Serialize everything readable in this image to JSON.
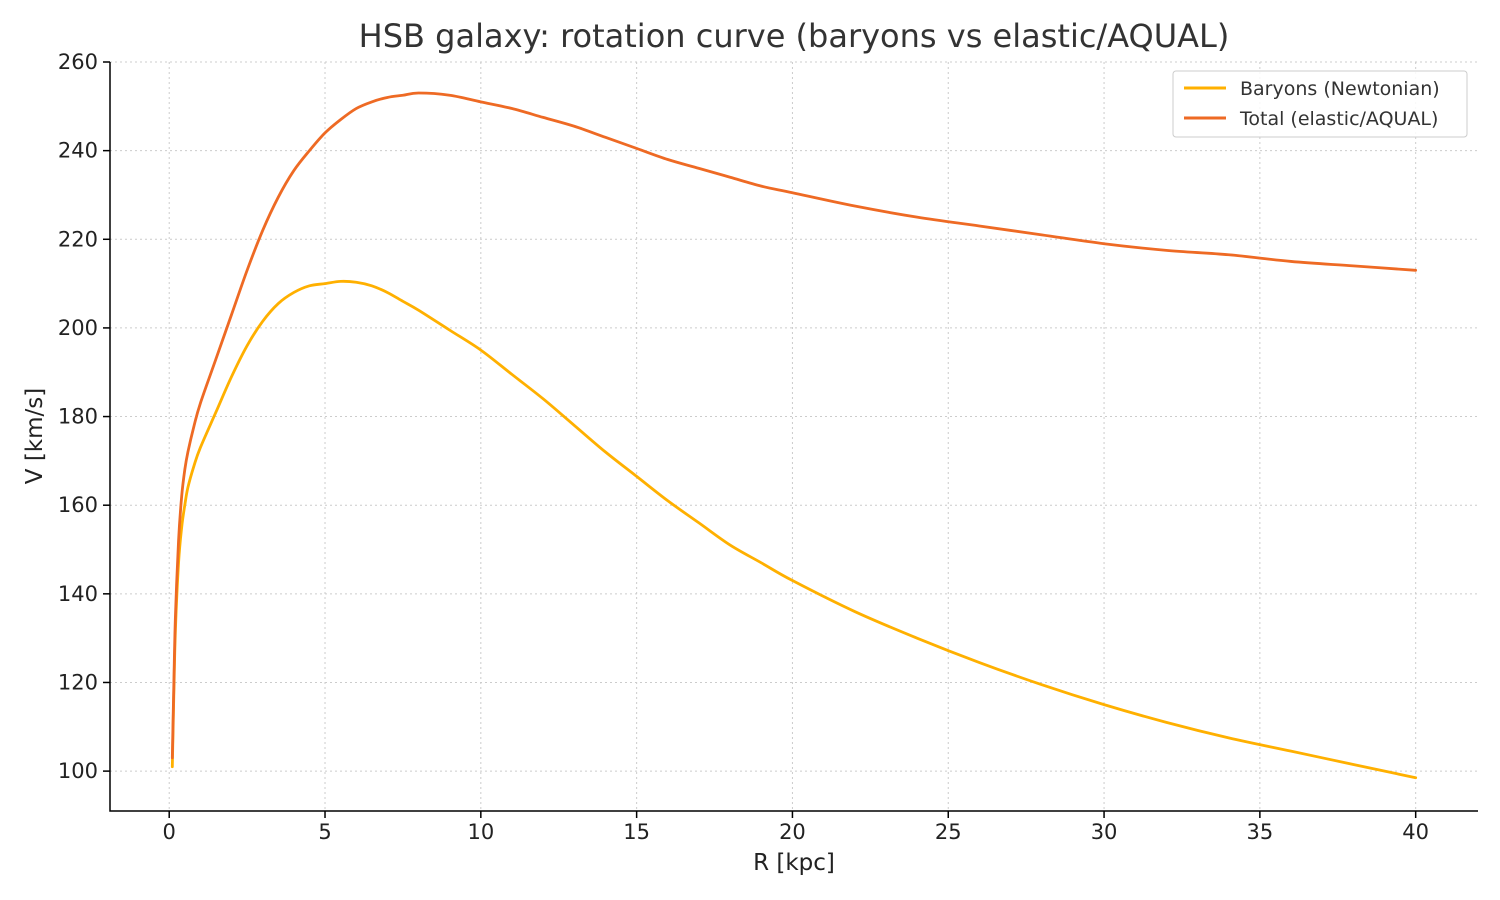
{
  "chart_data": {
    "type": "line",
    "title": "HSB galaxy: rotation curve (baryons vs elastic/AQUAL)",
    "xlabel": "R [kpc]",
    "ylabel": "V [km/s]",
    "xlim": [
      -1.9,
      42
    ],
    "ylim": [
      91,
      260
    ],
    "xticks": [
      0,
      5,
      10,
      15,
      20,
      25,
      30,
      35,
      40
    ],
    "yticks": [
      100,
      120,
      140,
      160,
      180,
      200,
      220,
      240,
      260
    ],
    "grid": true,
    "legend_position": "top-right",
    "series": [
      {
        "name": "Baryons (Newtonian)",
        "color": "#FFB000",
        "x": [
          0.1,
          0.15,
          0.2,
          0.3,
          0.4,
          0.5,
          0.6,
          0.8,
          1,
          1.5,
          2,
          2.5,
          3,
          3.5,
          4,
          4.5,
          5,
          5.5,
          6,
          6.5,
          7,
          7.5,
          8,
          9,
          10,
          11,
          12,
          13,
          14,
          15,
          16,
          17,
          18,
          19,
          20,
          22,
          24,
          26,
          28,
          30,
          32,
          34,
          36,
          38,
          40
        ],
        "y": [
          101,
          118,
          132,
          147,
          155,
          160,
          164,
          169,
          173,
          181,
          189,
          196,
          201.5,
          205.5,
          208,
          209.5,
          210,
          210.5,
          210.3,
          209.5,
          208,
          206,
          204,
          199.5,
          195,
          189.5,
          184,
          178,
          172,
          166.5,
          161,
          156,
          151,
          147,
          143,
          136,
          130,
          124.5,
          119.5,
          115,
          111,
          107.5,
          104.5,
          101.5,
          98.5
        ]
      },
      {
        "name": "Total (elastic/AQUAL)",
        "color": "#EE6A24",
        "x": [
          0.1,
          0.15,
          0.2,
          0.3,
          0.4,
          0.5,
          0.6,
          0.8,
          1,
          1.5,
          2,
          2.5,
          3,
          3.5,
          4,
          4.5,
          5,
          5.5,
          6,
          6.5,
          7,
          7.5,
          8,
          9,
          10,
          11,
          12,
          13,
          14,
          15,
          16,
          17,
          18,
          19,
          20,
          22,
          24,
          26,
          28,
          30,
          32,
          34,
          36,
          38,
          40
        ],
        "y": [
          103,
          120,
          135,
          152,
          162,
          168,
          172,
          178,
          183,
          193,
          203,
          213,
          222,
          229.5,
          235.5,
          240,
          244,
          247,
          249.5,
          251,
          252,
          252.5,
          253,
          252.5,
          251,
          249.5,
          247.5,
          245.5,
          243,
          240.5,
          238,
          236,
          234,
          232,
          230.5,
          227.5,
          225,
          223,
          221,
          219,
          217.5,
          216.5,
          215,
          214,
          213
        ]
      }
    ]
  }
}
